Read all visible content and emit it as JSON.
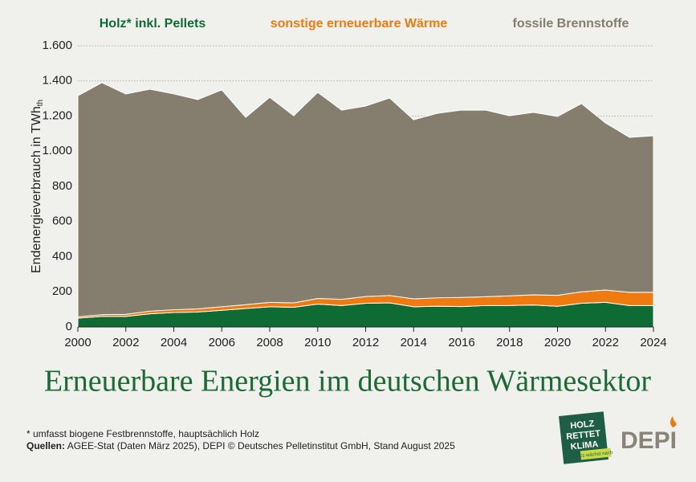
{
  "chart_data": {
    "type": "stacked-area",
    "title": "Erneuerbare Energien im deutschen Wärmesektor",
    "ylabel": "Endenergieverbrauch in TWh",
    "ylabel_sub": "th",
    "x": [
      2000,
      2001,
      2002,
      2003,
      2004,
      2005,
      2006,
      2007,
      2008,
      2009,
      2010,
      2011,
      2012,
      2013,
      2014,
      2015,
      2016,
      2017,
      2018,
      2019,
      2020,
      2021,
      2022,
      2023,
      2024
    ],
    "xlim": [
      2000,
      2024
    ],
    "xticks": [
      2000,
      2002,
      2004,
      2006,
      2008,
      2010,
      2012,
      2014,
      2016,
      2018,
      2020,
      2022,
      2024
    ],
    "ylim": [
      0,
      1600
    ],
    "yticks": [
      0,
      200,
      400,
      600,
      800,
      {
        "value": 1000,
        "label": "1.000"
      },
      {
        "value": 1200,
        "label": "1.200"
      },
      {
        "value": 1400,
        "label": "1.400"
      },
      {
        "value": 1600,
        "label": "1.600"
      }
    ],
    "grid": true,
    "series": [
      {
        "name": "Holz* inkl. Pellets",
        "color": "#0f6b34",
        "values": [
          50,
          60,
          60,
          75,
          82,
          85,
          95,
          105,
          115,
          112,
          130,
          122,
          135,
          137,
          115,
          118,
          116,
          122,
          122,
          125,
          118,
          135,
          140,
          122,
          122
        ]
      },
      {
        "name": "sonstige erneuerbare Wärme",
        "color": "#ef7b10",
        "values": [
          8,
          10,
          12,
          15,
          16,
          18,
          20,
          22,
          25,
          25,
          32,
          35,
          38,
          42,
          45,
          48,
          52,
          50,
          55,
          58,
          62,
          65,
          70,
          75,
          75
        ]
      },
      {
        "name": "fossile Brennstoffe",
        "color": "#857d6e",
        "values": [
          1258,
          1320,
          1254,
          1263,
          1228,
          1191,
          1234,
          1066,
          1167,
          1065,
          1173,
          1077,
          1084,
          1124,
          1019,
          1050,
          1066,
          1062,
          1025,
          1038,
          1018,
          1071,
          951,
          882,
          891
        ]
      }
    ]
  },
  "footer": {
    "footnote": "* umfasst biogene Festbrennstoffe, hauptsächlich Holz",
    "sources_label": "Quellen:",
    "sources": "AGEE-Stat (Daten März 2025), DEPI © Deutsches Pelletinstitut GmbH, Stand August 2025"
  },
  "logos": {
    "holz": [
      "HOLZ",
      "RETTET",
      "KLIMA"
    ],
    "holz_tag": "Es wächst nach",
    "depi": "DEPI"
  }
}
